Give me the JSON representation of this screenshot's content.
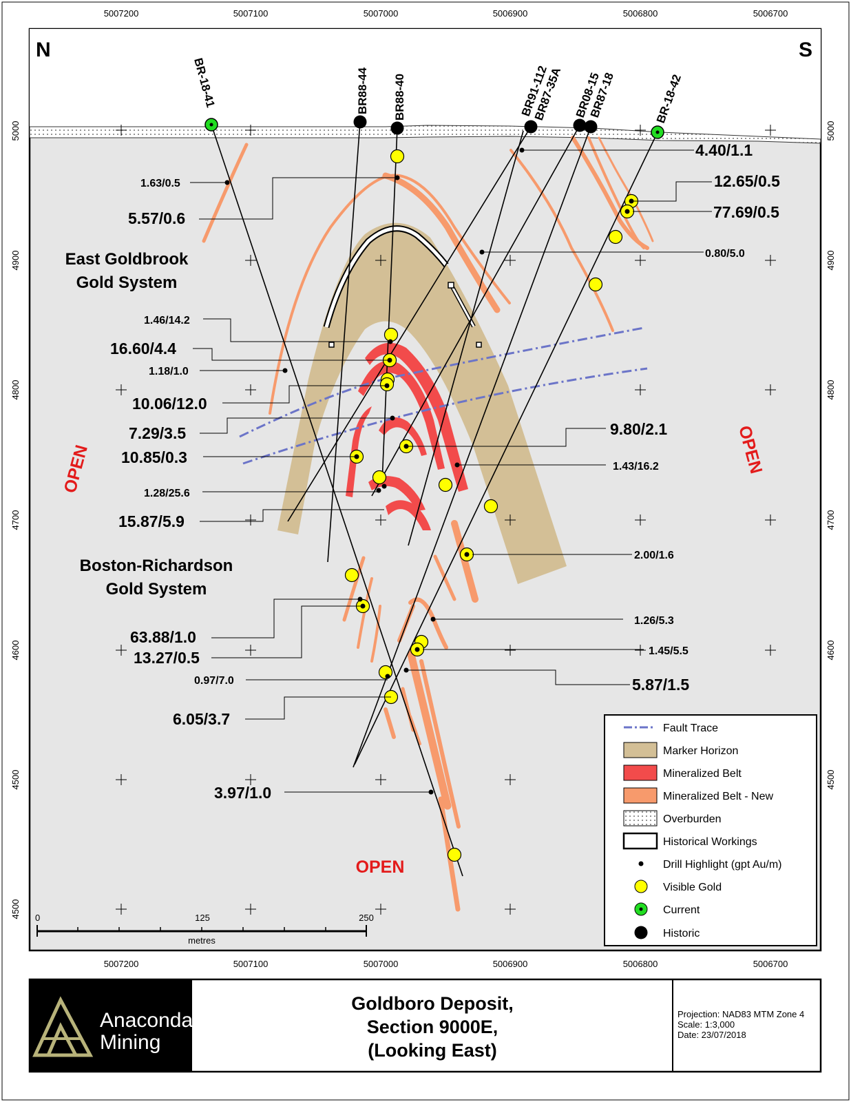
{
  "map": {
    "compass": {
      "north": "N",
      "south": "S"
    },
    "x_ticks": [
      "5007200",
      "5007100",
      "5007000",
      "5006900",
      "5006800",
      "5006700"
    ],
    "y_ticks": [
      "5000",
      "4900",
      "4800",
      "4700",
      "4600",
      "4500"
    ],
    "drill_holes": [
      "BR-18-41",
      "BR88-44",
      "BR88-40",
      "BR91-112",
      "BR87-35A",
      "BR08-15",
      "BR87-18",
      "BR-18-42"
    ],
    "systems": {
      "east_goldbrook": [
        "East Goldbrook",
        "Gold System"
      ],
      "boston_richardson": [
        "Boston-Richardson",
        "Gold System"
      ]
    },
    "open_label": "OPEN",
    "highlights": {
      "h1": "1.63/0.5",
      "h2": "5.57/0.6",
      "h3": "4.40/1.1",
      "h4": "12.65/0.5",
      "h5": "77.69/0.5",
      "h6": "0.80/5.0",
      "h7": "1.46/14.2",
      "h8": "16.60/4.4",
      "h9": "1.18/1.0",
      "h10": "10.06/12.0",
      "h11": "7.29/3.5",
      "h12": "10.85/0.3",
      "h13": "9.80/2.1",
      "h14": "1.43/16.2",
      "h15": "1.28/25.6",
      "h16": "15.87/5.9",
      "h17": "2.00/1.6",
      "h18": "63.88/1.0",
      "h19": "13.27/0.5",
      "h20": "1.26/5.3",
      "h21": "1.45/5.5",
      "h22": "0.97/7.0",
      "h23": "5.87/1.5",
      "h24": "6.05/3.7",
      "h25": "3.97/1.0"
    },
    "scale_bar": {
      "labels": [
        "0",
        "125",
        "250"
      ],
      "unit": "metres"
    }
  },
  "legend": {
    "items": [
      {
        "icon": "fault-trace",
        "label": "Fault Trace"
      },
      {
        "icon": "marker-horizon",
        "label": "Marker Horizon"
      },
      {
        "icon": "mineralized-belt",
        "label": "Mineralized Belt"
      },
      {
        "icon": "mineralized-belt-new",
        "label": "Mineralized Belt - New"
      },
      {
        "icon": "overburden",
        "label": "Overburden"
      },
      {
        "icon": "historical-workings",
        "label": "Historical Workings"
      },
      {
        "icon": "drill-highlight",
        "label": "Drill Highlight (gpt Au/m)"
      },
      {
        "icon": "visible-gold",
        "label": "Visible Gold"
      },
      {
        "icon": "current-hole",
        "label": "Current"
      },
      {
        "icon": "historic-hole",
        "label": "Historic"
      }
    ]
  },
  "title_block": {
    "company_line1": "Anaconda",
    "company_line2": "Mining",
    "title_lines": [
      "Goldboro Deposit,",
      "Section 9000E,",
      "(Looking East)"
    ],
    "projection": "Projection: NAD83 MTM Zone 4",
    "scale": "Scale: 1:3,000",
    "date": "Date: 23/07/2018"
  },
  "colors": {
    "marker_horizon": "#d3bf96",
    "mineralized_belt": "#f24b4b",
    "mineralized_belt_new": "#f79a6c",
    "fault_trace": "#6b74c8",
    "visible_gold": "#ffff00",
    "current": "#22dd22",
    "open": "#e31b1b",
    "logo": "#b8b37a",
    "map_background": "#e6e6e6"
  }
}
